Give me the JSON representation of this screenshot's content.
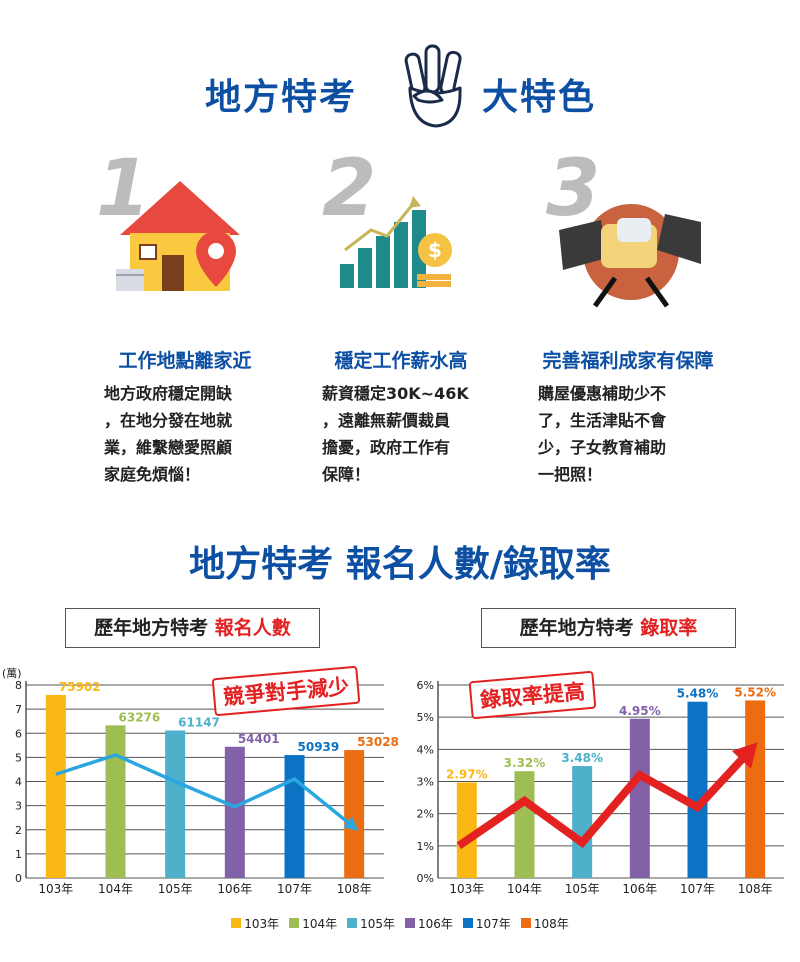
{
  "header": {
    "left": "地方特考",
    "right": "大特色"
  },
  "features": [
    {
      "number": "1",
      "title": "工作地點離家近",
      "desc": "地方政府穩定開缺\n，在地分發在地就\n業，維繫戀愛照顧\n家庭免煩惱！",
      "icon": "house-location-icon"
    },
    {
      "number": "2",
      "title": "穩定工作薪水高",
      "desc": "薪資穩定30K~46K\n，遠離無薪價裁員\n擔憂，政府工作有\n保障！",
      "icon": "growth-chart-money-icon"
    },
    {
      "number": "3",
      "title": "完善福利成家有保障",
      "desc": "購屋優惠補助少不\n了，生活津貼不會\n少，子女教育補助\n一把照！",
      "icon": "handshake-icon"
    }
  ],
  "section_title": "地方特考 報名人數/錄取率",
  "chart_titles": {
    "left_prefix": "歷年地方特考 ",
    "left_highlight": "報名人數",
    "right_prefix": "歷年地方特考 ",
    "right_highlight": "錄取率"
  },
  "stamps": {
    "left": "競爭對手減少",
    "right": "錄取率提高"
  },
  "chart_data": [
    {
      "type": "bar",
      "unit_label": "(萬)",
      "categories": [
        "103年",
        "104年",
        "105年",
        "106年",
        "107年",
        "108年"
      ],
      "values": [
        75902,
        63276,
        61147,
        54401,
        50939,
        53028
      ],
      "value_labels": [
        "75902",
        "63276",
        "61147",
        "54401",
        "50939",
        "53028"
      ],
      "yticks": [
        "0",
        "1",
        "2",
        "3",
        "4",
        "5",
        "6",
        "7",
        "8"
      ],
      "ylim": [
        0,
        80000
      ],
      "colors": [
        "#fbb814",
        "#9ebd52",
        "#4fb0cb",
        "#8361a9",
        "#0b72c4",
        "#ec6d11"
      ],
      "trend": "down",
      "grid": true
    },
    {
      "type": "bar",
      "categories": [
        "103年",
        "104年",
        "105年",
        "106年",
        "107年",
        "108年"
      ],
      "values": [
        2.97,
        3.32,
        3.48,
        4.95,
        5.48,
        5.52
      ],
      "value_labels": [
        "2.97%",
        "3.32%",
        "3.48%",
        "4.95%",
        "5.48%",
        "5.52%"
      ],
      "yticks": [
        "0%",
        "1%",
        "2%",
        "3%",
        "4%",
        "5%",
        "6%"
      ],
      "ylim": [
        0,
        6
      ],
      "colors": [
        "#fbb814",
        "#9ebd52",
        "#4fb0cb",
        "#8361a9",
        "#0b72c4",
        "#ec6d11"
      ],
      "trend": "up",
      "grid": true
    }
  ],
  "legend": [
    {
      "label": "103年",
      "color": "#fbb814"
    },
    {
      "label": "104年",
      "color": "#9ebd52"
    },
    {
      "label": "105年",
      "color": "#4fb0cb"
    },
    {
      "label": "106年",
      "color": "#8361a9"
    },
    {
      "label": "107年",
      "color": "#0b72c4"
    },
    {
      "label": "108年",
      "color": "#ec6d11"
    }
  ]
}
